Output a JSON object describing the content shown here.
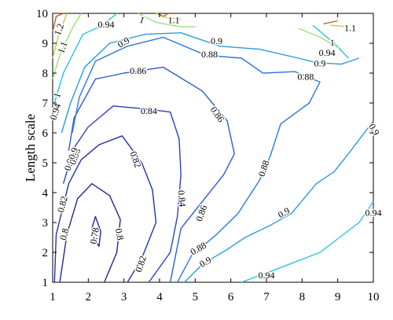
{
  "chart_data": {
    "type": "contour",
    "title": "",
    "xlabel": "",
    "ylabel": "Length scale",
    "xlim": [
      1,
      10
    ],
    "ylim": [
      1,
      10
    ],
    "xticks": [
      1,
      2,
      3,
      4,
      5,
      6,
      7,
      8,
      9,
      10
    ],
    "yticks": [
      1,
      2,
      3,
      4,
      5,
      6,
      7,
      8,
      9,
      10
    ],
    "grid": false,
    "levels": [
      {
        "label": "0.78",
        "color": "#1f2a8e",
        "lines": [
          [
            [
              2.1,
              2.8
            ],
            [
              2.2,
              3.2
            ],
            [
              2.35,
              2.7
            ],
            [
              2.3,
              2.2
            ],
            [
              2.15,
              2.5
            ],
            [
              2.1,
              2.8
            ]
          ]
        ],
        "labels": [
          {
            "text": "0.78",
            "x": 2.2,
            "y": 2.55,
            "angle": 80
          }
        ]
      },
      {
        "label": "0.8",
        "color": "#1f2a8e",
        "lines": [
          [
            [
              1.2,
              1.0
            ],
            [
              1.4,
              2.6
            ],
            [
              1.7,
              3.8
            ],
            [
              2.1,
              4.3
            ],
            [
              2.6,
              3.9
            ],
            [
              2.9,
              3.1
            ],
            [
              2.8,
              2.0
            ],
            [
              2.45,
              1.0
            ]
          ]
        ],
        "labels": [
          {
            "text": "0.8",
            "x": 1.35,
            "y": 2.6,
            "angle": 75
          },
          {
            "text": "0.8",
            "x": 2.85,
            "y": 2.6,
            "angle": -80
          }
        ]
      },
      {
        "label": "0.82",
        "color": "#2233a8",
        "lines": [
          [
            [
              1.05,
              1.0
            ],
            [
              1.1,
              2.6
            ],
            [
              1.45,
              4.3
            ],
            [
              1.8,
              5.1
            ],
            [
              2.3,
              5.6
            ],
            [
              2.95,
              5.9
            ],
            [
              3.5,
              5.0
            ],
            [
              3.8,
              4.1
            ],
            [
              3.9,
              3.0
            ],
            [
              3.5,
              1.8
            ],
            [
              3.1,
              1.0
            ]
          ]
        ],
        "labels": [
          {
            "text": "0.82",
            "x": 1.3,
            "y": 3.6,
            "angle": 75
          },
          {
            "text": "0.82",
            "x": 3.3,
            "y": 5.1,
            "angle": -70
          },
          {
            "text": "0.82",
            "x": 3.5,
            "y": 1.6,
            "angle": 72
          }
        ]
      },
      {
        "label": "0.84",
        "color": "#2b40bc",
        "lines": [
          [
            [
              1.3,
              4.3
            ],
            [
              1.6,
              5.5
            ],
            [
              2.0,
              6.2
            ],
            [
              2.7,
              6.9
            ],
            [
              3.6,
              6.8
            ],
            [
              4.3,
              6.7
            ],
            [
              4.55,
              5.8
            ],
            [
              4.6,
              4.6
            ],
            [
              4.5,
              3.2
            ],
            [
              4.3,
              2.0
            ],
            [
              3.7,
              1.0
            ]
          ]
        ],
        "labels": [
          {
            "text": "0.84",
            "x": 1.5,
            "y": 5.0,
            "angle": 72
          },
          {
            "text": "0.84",
            "x": 3.7,
            "y": 6.7,
            "angle": 0
          },
          {
            "text": "0.84",
            "x": 4.6,
            "y": 3.8,
            "angle": -85
          }
        ]
      },
      {
        "label": "0.86",
        "color": "#2f5ad0",
        "lines": [
          [
            [
              1.45,
              5.4
            ],
            [
              1.6,
              6.5
            ],
            [
              2.2,
              7.8
            ],
            [
              3.0,
              8.0
            ],
            [
              4.1,
              8.2
            ],
            [
              5.2,
              7.4
            ],
            [
              5.9,
              6.4
            ],
            [
              6.1,
              5.3
            ],
            [
              5.8,
              4.6
            ],
            [
              5.2,
              3.7
            ],
            [
              4.6,
              2.8
            ],
            [
              4.3,
              1.0
            ]
          ]
        ],
        "labels": [
          {
            "text": "0.86",
            "x": 1.65,
            "y": 5.2,
            "angle": 70
          },
          {
            "text": "0.86",
            "x": 3.4,
            "y": 8.05,
            "angle": 0
          },
          {
            "text": "0.86",
            "x": 5.6,
            "y": 6.6,
            "angle": -55
          },
          {
            "text": "0.86",
            "x": 5.2,
            "y": 3.3,
            "angle": 70
          }
        ]
      },
      {
        "label": "0.88",
        "color": "#2f78d8",
        "lines": [
          [
            [
              1.55,
              6.0
            ],
            [
              1.75,
              7.2
            ],
            [
              2.2,
              8.4
            ],
            [
              3.1,
              8.9
            ],
            [
              4.1,
              9.2
            ],
            [
              5.3,
              8.6
            ],
            [
              6.3,
              8.5
            ],
            [
              6.9,
              8.0
            ],
            [
              7.8,
              8.05
            ],
            [
              8.5,
              7.7
            ],
            [
              8.2,
              7.0
            ],
            [
              7.4,
              6.3
            ],
            [
              7.1,
              5.2
            ],
            [
              6.8,
              4.4
            ],
            [
              6.2,
              3.3
            ],
            [
              5.6,
              2.6
            ],
            [
              4.9,
              1.9
            ],
            [
              4.5,
              1.0
            ]
          ]
        ],
        "labels": [
          {
            "text": "0.88",
            "x": 5.4,
            "y": 8.6,
            "angle": 0
          },
          {
            "text": "0.88",
            "x": 8.1,
            "y": 7.85,
            "angle": 0
          },
          {
            "text": "0.88",
            "x": 6.95,
            "y": 4.8,
            "angle": 72
          },
          {
            "text": "0.88",
            "x": 5.1,
            "y": 2.1,
            "angle": 30
          }
        ]
      },
      {
        "label": "0.9",
        "color": "#2a9ce0",
        "lines": [
          [
            [
              1.25,
              6.0
            ],
            [
              1.5,
              7.0
            ],
            [
              1.9,
              8.2
            ],
            [
              2.6,
              9.0
            ],
            [
              3.6,
              9.3
            ],
            [
              4.6,
              9.35
            ],
            [
              5.7,
              8.9
            ],
            [
              6.8,
              8.8
            ],
            [
              7.9,
              8.5
            ],
            [
              8.4,
              8.35
            ],
            [
              9.1,
              8.3
            ],
            [
              9.6,
              8.5
            ]
          ],
          [
            [
              10.3,
              6.4
            ],
            [
              9.3,
              5.3
            ],
            [
              8.9,
              4.7
            ],
            [
              8.4,
              4.3
            ],
            [
              7.7,
              3.3
            ],
            [
              7.1,
              2.9
            ],
            [
              6.4,
              2.5
            ],
            [
              5.9,
              2.1
            ],
            [
              5.2,
              1.6
            ],
            [
              4.7,
              1.0
            ]
          ]
        ],
        "labels": [
          {
            "text": "0.9",
            "x": 1.6,
            "y": 5.3,
            "angle": 70
          },
          {
            "text": "0.9",
            "x": 3.0,
            "y": 9.0,
            "angle": 30
          },
          {
            "text": "0.9",
            "x": 5.6,
            "y": 9.05,
            "angle": 0
          },
          {
            "text": "0.9",
            "x": 8.5,
            "y": 8.3,
            "angle": 0
          },
          {
            "text": "0.9",
            "x": 10.0,
            "y": 6.1,
            "angle": -60
          },
          {
            "text": "0.9",
            "x": 7.5,
            "y": 3.3,
            "angle": 30
          },
          {
            "text": "0.9",
            "x": 5.3,
            "y": 1.65,
            "angle": 30
          }
        ]
      },
      {
        "label": "0.94",
        "color": "#29c4e0",
        "lines": [
          [
            [
              1.05,
              7.0
            ],
            [
              1.3,
              8.0
            ],
            [
              1.85,
              9.3
            ],
            [
              2.4,
              9.6
            ],
            [
              2.8,
              10.0
            ]
          ],
          [
            [
              8.3,
              9.6
            ],
            [
              8.9,
              9.0
            ],
            [
              9.3,
              8.5
            ]
          ],
          [
            [
              10.3,
              3.7
            ],
            [
              9.6,
              3.0
            ],
            [
              8.5,
              2.0
            ],
            [
              7.2,
              1.4
            ],
            [
              6.3,
              1.0
            ]
          ]
        ],
        "labels": [
          {
            "text": "0.94",
            "x": 1.1,
            "y": 6.7,
            "angle": 72
          },
          {
            "text": "0.94",
            "x": 2.5,
            "y": 9.6,
            "angle": 0
          },
          {
            "text": "0.94",
            "x": 8.7,
            "y": 8.65,
            "angle": 0
          },
          {
            "text": "0.94",
            "x": 10.0,
            "y": 3.3,
            "angle": 0
          },
          {
            "text": "0.94",
            "x": 7.0,
            "y": 1.2,
            "angle": 0
          }
        ]
      },
      {
        "label": "1",
        "color": "#9ae07a",
        "lines": [
          [
            [
              1.0,
              7.8
            ],
            [
              1.2,
              8.6
            ],
            [
              1.55,
              9.5
            ],
            [
              1.8,
              10.0
            ]
          ],
          [
            [
              3.4,
              10.0
            ],
            [
              3.9,
              9.7
            ],
            [
              4.6,
              9.55
            ],
            [
              5.0,
              9.55
            ]
          ],
          [
            [
              7.9,
              9.5
            ],
            [
              8.5,
              9.2
            ],
            [
              9.1,
              8.8
            ]
          ]
        ],
        "labels": [
          {
            "text": "1",
            "x": 1.15,
            "y": 7.25,
            "angle": 70
          },
          {
            "text": "1",
            "x": 3.5,
            "y": 9.75,
            "angle": -20
          },
          {
            "text": "1",
            "x": 8.85,
            "y": 9.0,
            "angle": 0
          }
        ]
      },
      {
        "label": "1.1",
        "color": "#c9c54a",
        "lines": [
          [
            [
              1.0,
              8.5
            ],
            [
              1.15,
              9.2
            ],
            [
              1.4,
              10.0
            ]
          ],
          [
            [
              3.9,
              10.0
            ],
            [
              4.2,
              9.85
            ],
            [
              4.6,
              9.8
            ]
          ],
          [
            [
              8.8,
              9.6
            ],
            [
              9.3,
              9.55
            ]
          ]
        ],
        "labels": [
          {
            "text": "1.1",
            "x": 1.3,
            "y": 8.85,
            "angle": 70
          },
          {
            "text": "1.1",
            "x": 4.4,
            "y": 9.75,
            "angle": 0
          },
          {
            "text": "1.1",
            "x": 9.35,
            "y": 9.48,
            "angle": 0
          }
        ]
      },
      {
        "label": "1.2",
        "color": "#c0622a",
        "lines": [
          [
            [
              1.0,
              9.4
            ],
            [
              1.1,
              9.9
            ],
            [
              1.3,
              10.0
            ]
          ],
          [
            [
              3.95,
              10.0
            ],
            [
              4.1,
              9.9
            ],
            [
              4.25,
              10.0
            ]
          ],
          [
            [
              8.6,
              9.65
            ],
            [
              9.0,
              9.75
            ]
          ]
        ],
        "labels": [
          {
            "text": "1.2",
            "x": 1.2,
            "y": 9.45,
            "angle": 70
          }
        ]
      }
    ]
  }
}
